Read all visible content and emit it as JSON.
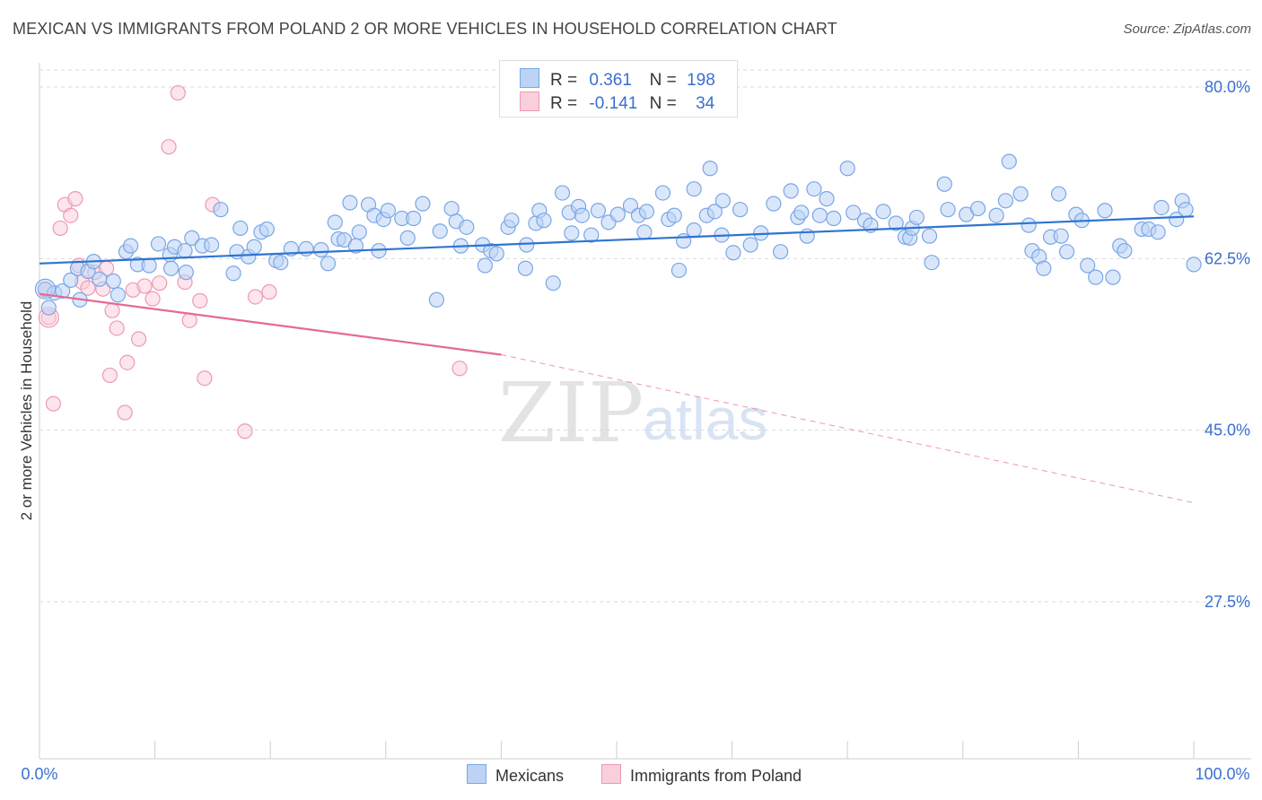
{
  "title": "MEXICAN VS IMMIGRANTS FROM POLAND 2 OR MORE VEHICLES IN HOUSEHOLD CORRELATION CHART",
  "source": "Source: ZipAtlas.com",
  "watermark": {
    "zip": "ZIP",
    "atlas": "atlas"
  },
  "colors": {
    "blue_fill": "#bcd3f5",
    "blue_stroke": "#7aa6e6",
    "blue_line": "#2f74d0",
    "blue_text": "#3a6fd0",
    "pink_fill": "#f9cfdc",
    "pink_stroke": "#ec9ab4",
    "pink_line": "#e56a93",
    "grid": "#d9d9d9"
  },
  "legend": {
    "rows": [
      {
        "r_label": "R =",
        "r_value": "0.361",
        "n_label": "N =",
        "n_value": "198"
      },
      {
        "r_label": "R =",
        "r_value": "-0.141",
        "n_label": "N =",
        "n_value": "34"
      }
    ]
  },
  "bottom_legend": {
    "mexicans": "Mexicans",
    "poland": "Immigrants from Poland"
  },
  "chart_data": {
    "type": "scatter",
    "xlabel": "",
    "ylabel": "2 or more Vehicles in Household",
    "xlim": [
      0,
      100
    ],
    "ylim": [
      10,
      83
    ],
    "x_tick_labels": [
      "0.0%",
      "100.0%"
    ],
    "y_ticks": [
      80.0,
      62.5,
      45.0,
      27.5
    ],
    "y_tick_labels": [
      "80.0%",
      "62.5%",
      "45.0%",
      "27.5%"
    ],
    "grid": "horizontal dashed",
    "legend_position": "top-center",
    "series": [
      {
        "name": "Mexicans",
        "trend": {
          "x": [
            0,
            100
          ],
          "y": [
            62.0,
            66.8
          ],
          "style": "solid"
        },
        "points": [
          [
            0.5,
            59.4
          ],
          [
            0.8,
            57.5
          ],
          [
            1.3,
            59.0
          ],
          [
            2.0,
            59.2
          ],
          [
            2.7,
            60.3
          ],
          [
            3.3,
            61.5
          ],
          [
            3.5,
            58.3
          ],
          [
            4.2,
            61.2
          ],
          [
            4.7,
            62.2
          ],
          [
            5.2,
            60.4
          ],
          [
            6.4,
            60.2
          ],
          [
            6.8,
            58.8
          ],
          [
            7.5,
            63.2
          ],
          [
            7.9,
            63.8
          ],
          [
            8.5,
            61.9
          ],
          [
            9.5,
            61.8
          ],
          [
            10.3,
            64.0
          ],
          [
            11.3,
            62.9
          ],
          [
            11.4,
            61.5
          ],
          [
            11.7,
            63.7
          ],
          [
            12.6,
            63.3
          ],
          [
            12.7,
            61.1
          ],
          [
            13.2,
            64.6
          ],
          [
            14.1,
            63.8
          ],
          [
            14.9,
            63.9
          ],
          [
            15.7,
            67.5
          ],
          [
            16.8,
            61.0
          ],
          [
            17.1,
            63.2
          ],
          [
            17.4,
            65.6
          ],
          [
            18.1,
            62.7
          ],
          [
            18.6,
            63.7
          ],
          [
            19.2,
            65.2
          ],
          [
            19.7,
            65.5
          ],
          [
            20.5,
            62.3
          ],
          [
            20.9,
            62.1
          ],
          [
            21.8,
            63.5
          ],
          [
            23.1,
            63.5
          ],
          [
            24.4,
            63.4
          ],
          [
            25.0,
            62.0
          ],
          [
            25.6,
            66.2
          ],
          [
            25.9,
            64.5
          ],
          [
            26.4,
            64.4
          ],
          [
            26.9,
            68.2
          ],
          [
            27.4,
            63.8
          ],
          [
            27.7,
            65.2
          ],
          [
            28.5,
            68.0
          ],
          [
            29.0,
            66.9
          ],
          [
            29.4,
            63.3
          ],
          [
            29.8,
            66.5
          ],
          [
            30.2,
            67.4
          ],
          [
            31.4,
            66.6
          ],
          [
            31.9,
            64.6
          ],
          [
            32.4,
            66.6
          ],
          [
            33.2,
            68.1
          ],
          [
            34.4,
            58.3
          ],
          [
            34.7,
            65.3
          ],
          [
            35.7,
            67.6
          ],
          [
            36.1,
            66.3
          ],
          [
            36.5,
            63.8
          ],
          [
            37.0,
            65.7
          ],
          [
            38.4,
            63.9
          ],
          [
            38.6,
            61.8
          ],
          [
            39.1,
            63.3
          ],
          [
            39.6,
            63.0
          ],
          [
            40.6,
            65.7
          ],
          [
            40.9,
            66.4
          ],
          [
            42.1,
            61.5
          ],
          [
            42.2,
            63.9
          ],
          [
            43.0,
            66.1
          ],
          [
            43.3,
            67.4
          ],
          [
            43.7,
            66.4
          ],
          [
            44.5,
            60.0
          ],
          [
            45.3,
            69.2
          ],
          [
            45.9,
            67.2
          ],
          [
            46.1,
            65.1
          ],
          [
            46.7,
            67.8
          ],
          [
            47.0,
            66.9
          ],
          [
            47.8,
            64.9
          ],
          [
            48.4,
            67.4
          ],
          [
            49.3,
            66.2
          ],
          [
            50.1,
            67.0
          ],
          [
            51.2,
            67.9
          ],
          [
            51.9,
            66.9
          ],
          [
            52.4,
            65.2
          ],
          [
            52.6,
            67.3
          ],
          [
            54.0,
            69.2
          ],
          [
            54.5,
            66.5
          ],
          [
            55.0,
            66.9
          ],
          [
            55.4,
            61.3
          ],
          [
            55.8,
            64.3
          ],
          [
            56.7,
            65.4
          ],
          [
            56.7,
            69.6
          ],
          [
            57.8,
            66.9
          ],
          [
            58.1,
            71.7
          ],
          [
            58.5,
            67.3
          ],
          [
            59.1,
            64.9
          ],
          [
            59.2,
            68.4
          ],
          [
            60.1,
            63.1
          ],
          [
            60.7,
            67.5
          ],
          [
            61.6,
            63.9
          ],
          [
            62.5,
            65.1
          ],
          [
            63.6,
            68.1
          ],
          [
            64.2,
            63.2
          ],
          [
            65.1,
            69.4
          ],
          [
            65.7,
            66.7
          ],
          [
            66.0,
            67.2
          ],
          [
            66.5,
            64.8
          ],
          [
            67.1,
            69.6
          ],
          [
            67.6,
            66.9
          ],
          [
            68.2,
            68.6
          ],
          [
            68.8,
            66.6
          ],
          [
            70.0,
            71.7
          ],
          [
            70.5,
            67.2
          ],
          [
            71.5,
            66.4
          ],
          [
            72.0,
            65.9
          ],
          [
            73.1,
            67.3
          ],
          [
            74.2,
            66.1
          ],
          [
            75.0,
            64.7
          ],
          [
            75.4,
            64.6
          ],
          [
            75.6,
            65.6
          ],
          [
            76.0,
            66.7
          ],
          [
            77.1,
            64.8
          ],
          [
            77.3,
            62.1
          ],
          [
            78.4,
            70.1
          ],
          [
            78.7,
            67.5
          ],
          [
            80.3,
            67.0
          ],
          [
            81.3,
            67.6
          ],
          [
            82.9,
            66.9
          ],
          [
            83.7,
            68.4
          ],
          [
            84.0,
            72.4
          ],
          [
            85.0,
            69.1
          ],
          [
            85.7,
            65.9
          ],
          [
            86.0,
            63.3
          ],
          [
            86.6,
            62.7
          ],
          [
            87.0,
            61.5
          ],
          [
            87.6,
            64.7
          ],
          [
            88.3,
            69.1
          ],
          [
            88.5,
            64.8
          ],
          [
            89.0,
            63.2
          ],
          [
            89.8,
            67.0
          ],
          [
            90.3,
            66.4
          ],
          [
            90.8,
            61.8
          ],
          [
            91.5,
            60.6
          ],
          [
            92.3,
            67.4
          ],
          [
            93.0,
            60.6
          ],
          [
            93.6,
            63.8
          ],
          [
            94.0,
            63.3
          ],
          [
            95.5,
            65.5
          ],
          [
            96.1,
            65.5
          ],
          [
            96.9,
            65.2
          ],
          [
            97.2,
            67.7
          ],
          [
            98.5,
            66.5
          ],
          [
            99.0,
            68.4
          ],
          [
            99.3,
            67.5
          ],
          [
            100.0,
            61.9
          ]
        ]
      },
      {
        "name": "Immigrants from Poland",
        "trend": {
          "x": [
            0,
            40
          ],
          "y": [
            58.9,
            52.7
          ],
          "x_dashed_to": 100,
          "y_dashed_to": 37.6,
          "style": "solid then dashed"
        },
        "points": [
          [
            0.5,
            59.3
          ],
          [
            0.8,
            56.5
          ],
          [
            1.2,
            47.7
          ],
          [
            1.8,
            65.6
          ],
          [
            2.2,
            68.0
          ],
          [
            2.7,
            66.9
          ],
          [
            3.1,
            68.6
          ],
          [
            3.4,
            61.8
          ],
          [
            3.7,
            60.1
          ],
          [
            4.2,
            59.5
          ],
          [
            4.8,
            61.1
          ],
          [
            5.5,
            59.4
          ],
          [
            5.8,
            61.5
          ],
          [
            6.1,
            50.6
          ],
          [
            6.3,
            57.2
          ],
          [
            6.7,
            55.4
          ],
          [
            7.4,
            46.8
          ],
          [
            7.6,
            51.9
          ],
          [
            8.1,
            59.3
          ],
          [
            8.6,
            54.3
          ],
          [
            9.1,
            59.7
          ],
          [
            9.8,
            58.4
          ],
          [
            10.4,
            60.0
          ],
          [
            11.2,
            73.9
          ],
          [
            12.0,
            79.4
          ],
          [
            12.6,
            60.1
          ],
          [
            13.0,
            56.2
          ],
          [
            13.9,
            58.2
          ],
          [
            14.3,
            50.3
          ],
          [
            15.0,
            68.0
          ],
          [
            17.8,
            44.9
          ],
          [
            18.7,
            58.6
          ],
          [
            19.9,
            59.1
          ],
          [
            36.4,
            51.3
          ]
        ]
      }
    ]
  }
}
